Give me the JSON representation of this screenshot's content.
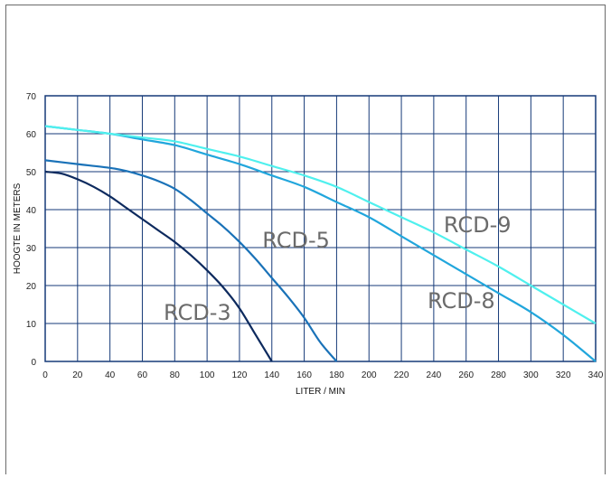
{
  "chart_data": {
    "type": "line",
    "xlabel": "LITER / MIN",
    "ylabel": "HOOGTE IN METERS",
    "xlim": [
      0,
      340
    ],
    "ylim": [
      0,
      70
    ],
    "x_ticks": [
      0,
      20,
      40,
      60,
      80,
      100,
      120,
      140,
      160,
      180,
      200,
      220,
      240,
      260,
      280,
      300,
      320,
      340
    ],
    "y_ticks": [
      0,
      10,
      20,
      30,
      40,
      50,
      60,
      70
    ],
    "grid": true,
    "series": [
      {
        "name": "RCD-3",
        "color": "#0d2a5e",
        "points": [
          [
            0,
            50
          ],
          [
            10,
            49.5
          ],
          [
            20,
            48
          ],
          [
            30,
            46
          ],
          [
            40,
            43.5
          ],
          [
            50,
            40.5
          ],
          [
            60,
            37.5
          ],
          [
            70,
            34.5
          ],
          [
            80,
            31.5
          ],
          [
            90,
            28
          ],
          [
            100,
            24
          ],
          [
            110,
            19.5
          ],
          [
            120,
            14
          ],
          [
            130,
            7
          ],
          [
            140,
            0
          ]
        ]
      },
      {
        "name": "RCD-5",
        "color": "#1a72b8",
        "points": [
          [
            0,
            53
          ],
          [
            20,
            52
          ],
          [
            40,
            51
          ],
          [
            50,
            50.2
          ],
          [
            60,
            49
          ],
          [
            70,
            47.5
          ],
          [
            80,
            45.5
          ],
          [
            90,
            42.5
          ],
          [
            100,
            39
          ],
          [
            110,
            35.5
          ],
          [
            120,
            31.5
          ],
          [
            130,
            27
          ],
          [
            140,
            22
          ],
          [
            150,
            17
          ],
          [
            160,
            11.5
          ],
          [
            170,
            5
          ],
          [
            180,
            0
          ]
        ]
      },
      {
        "name": "RCD-8",
        "color": "#21a6dc",
        "points": [
          [
            0,
            62
          ],
          [
            20,
            61
          ],
          [
            40,
            60
          ],
          [
            60,
            58.5
          ],
          [
            80,
            57
          ],
          [
            100,
            54.5
          ],
          [
            120,
            52
          ],
          [
            140,
            49
          ],
          [
            160,
            46
          ],
          [
            180,
            42
          ],
          [
            200,
            38
          ],
          [
            220,
            33
          ],
          [
            240,
            28
          ],
          [
            260,
            23
          ],
          [
            280,
            18
          ],
          [
            300,
            13
          ],
          [
            320,
            7
          ],
          [
            340,
            0
          ]
        ]
      },
      {
        "name": "RCD-9",
        "color": "#4ff0ee",
        "points": [
          [
            0,
            62
          ],
          [
            20,
            61
          ],
          [
            40,
            60
          ],
          [
            60,
            59
          ],
          [
            80,
            58
          ],
          [
            100,
            56
          ],
          [
            120,
            54
          ],
          [
            140,
            51.5
          ],
          [
            160,
            49
          ],
          [
            180,
            46
          ],
          [
            200,
            42
          ],
          [
            220,
            38
          ],
          [
            240,
            34
          ],
          [
            260,
            29.5
          ],
          [
            280,
            25
          ],
          [
            300,
            20
          ],
          [
            320,
            15
          ],
          [
            340,
            10
          ]
        ]
      }
    ],
    "annotations": [
      {
        "text": "RCD-3",
        "x": 94,
        "y": 11
      },
      {
        "text": "RCD-5",
        "x": 155,
        "y": 30
      },
      {
        "text": "RCD-8",
        "x": 257,
        "y": 14
      },
      {
        "text": "RCD-9",
        "x": 267,
        "y": 34
      }
    ]
  }
}
